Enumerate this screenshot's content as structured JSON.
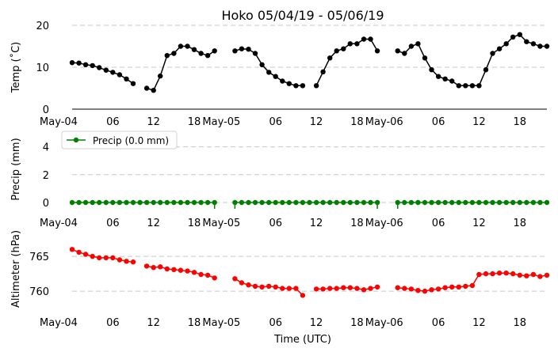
{
  "title": "Hoko 05/04/19 - 05/06/19",
  "chart_data": [
    {
      "type": "line",
      "name": "temperature",
      "ylabel": "Temp ($^\\circ$C)",
      "ylabel_display": "Temp (˚C)",
      "ylim": [
        0,
        20
      ],
      "yticks": [
        0,
        10,
        20
      ],
      "grid": "y-dashed",
      "color": "#000000",
      "xtick_labels": [
        "May-04",
        "06",
        "12",
        "18",
        "May-05",
        "06",
        "12",
        "18",
        "May-06",
        "06",
        "12",
        "18"
      ],
      "x": [
        0,
        1,
        2,
        3,
        4,
        5,
        6,
        7,
        8,
        9,
        11,
        12,
        13,
        14,
        15,
        16,
        17,
        18,
        19,
        20,
        21,
        24,
        25,
        26,
        27,
        28,
        29,
        30,
        31,
        32,
        33,
        34,
        36,
        37,
        38,
        39,
        40,
        41,
        42,
        43,
        44,
        45,
        48,
        49,
        50,
        51,
        52,
        53,
        54,
        55,
        56,
        57,
        58,
        59,
        60,
        61,
        62,
        63,
        64,
        65,
        66,
        67,
        68,
        69,
        70
      ],
      "values": [
        11.1,
        11.0,
        10.6,
        10.4,
        9.9,
        9.3,
        8.8,
        8.2,
        7.2,
        6.1,
        5.0,
        4.5,
        7.9,
        12.8,
        13.3,
        15.0,
        15.0,
        14.2,
        13.3,
        12.8,
        13.9,
        13.9,
        14.4,
        14.3,
        13.3,
        10.6,
        8.8,
        7.8,
        6.7,
        6.1,
        5.6,
        5.6,
        5.6,
        8.9,
        12.2,
        13.9,
        14.4,
        15.6,
        15.6,
        16.7,
        16.7,
        13.9,
        13.9,
        13.3,
        15.0,
        15.6,
        12.2,
        9.4,
        7.8,
        7.2,
        6.7,
        5.6,
        5.6,
        5.6,
        5.6,
        9.4,
        13.3,
        14.4,
        15.6,
        17.2,
        17.8,
        16.1,
        15.6,
        15.0,
        15.0
      ]
    },
    {
      "type": "line",
      "name": "precipitation",
      "ylabel": "Precip (mm)",
      "ylim": [
        -0.4,
        5
      ],
      "yticks": [
        0,
        2,
        4
      ],
      "grid": "y-dashed",
      "color": "#008000",
      "legend": "Precip (0.0 mm)",
      "legend_position": "top-left",
      "xtick_labels": [
        "May-04",
        "06",
        "12",
        "18",
        "May-05",
        "06",
        "12",
        "18",
        "May-06",
        "06",
        "12",
        "18"
      ],
      "x": [
        0,
        1,
        2,
        3,
        4,
        5,
        6,
        7,
        8,
        9,
        10,
        11,
        12,
        13,
        14,
        15,
        16,
        17,
        18,
        19,
        20,
        21,
        24,
        25,
        26,
        27,
        28,
        29,
        30,
        31,
        32,
        33,
        34,
        35,
        36,
        37,
        38,
        39,
        40,
        41,
        42,
        43,
        44,
        45,
        48,
        49,
        50,
        51,
        52,
        53,
        54,
        55,
        56,
        57,
        58,
        59,
        60,
        61,
        62,
        63,
        64,
        65,
        66,
        67,
        68,
        69,
        70
      ],
      "values": [
        0,
        0,
        0,
        0,
        0,
        0,
        0,
        0,
        0,
        0,
        0,
        0,
        0,
        0,
        0,
        0,
        0,
        0,
        0,
        0,
        0,
        0,
        0,
        0,
        0,
        0,
        0,
        0,
        0,
        0,
        0,
        0,
        0,
        0,
        0,
        0,
        0,
        0,
        0,
        0,
        0,
        0,
        0,
        0,
        0,
        0,
        0,
        0,
        0,
        0,
        0,
        0,
        0,
        0,
        0,
        0,
        0,
        0,
        0,
        0,
        0,
        0,
        0,
        0,
        0,
        0,
        0
      ]
    },
    {
      "type": "line",
      "name": "altimeter",
      "ylabel": "Altimeter (hPa)",
      "xlabel": "Time (UTC)",
      "ylim": [
        755.8,
        768.2
      ],
      "yticks": [
        760,
        765
      ],
      "grid": "y-dashed",
      "color": "#ff0000",
      "xtick_labels": [
        "May-04",
        "06",
        "12",
        "18",
        "May-05",
        "06",
        "12",
        "18",
        "May-06",
        "06",
        "12",
        "18"
      ],
      "x": [
        0,
        1,
        2,
        3,
        4,
        5,
        6,
        7,
        8,
        9,
        11,
        12,
        13,
        14,
        15,
        16,
        17,
        18,
        19,
        20,
        21,
        24,
        25,
        26,
        27,
        28,
        29,
        30,
        31,
        32,
        33,
        34,
        36,
        37,
        38,
        39,
        40,
        41,
        42,
        43,
        44,
        45,
        48,
        49,
        50,
        51,
        52,
        53,
        54,
        55,
        56,
        57,
        58,
        59,
        60,
        61,
        62,
        63,
        64,
        65,
        66,
        67,
        68,
        69,
        70
      ],
      "values": [
        766.0,
        765.6,
        765.3,
        765.0,
        764.8,
        764.8,
        764.8,
        764.5,
        764.3,
        764.2,
        763.6,
        763.4,
        763.5,
        763.2,
        763.1,
        763.0,
        762.9,
        762.7,
        762.4,
        762.3,
        761.9,
        761.8,
        761.2,
        760.9,
        760.7,
        760.6,
        760.7,
        760.6,
        760.4,
        760.4,
        760.4,
        759.4,
        760.3,
        760.3,
        760.4,
        760.4,
        760.5,
        760.5,
        760.4,
        760.2,
        760.4,
        760.6,
        760.5,
        760.4,
        760.3,
        760.1,
        760.0,
        760.2,
        760.3,
        760.5,
        760.6,
        760.6,
        760.7,
        760.8,
        762.4,
        762.5,
        762.5,
        762.6,
        762.6,
        762.5,
        762.3,
        762.2,
        762.4,
        762.1,
        762.3
      ]
    }
  ],
  "xlabel": "Time (UTC)"
}
